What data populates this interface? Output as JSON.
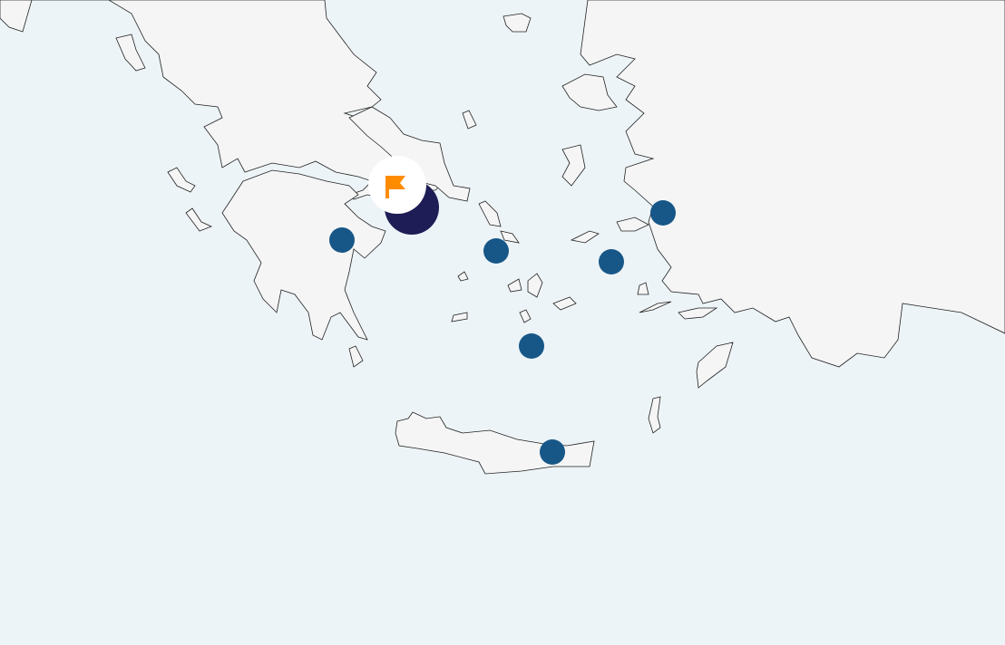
{
  "map": {
    "colors": {
      "sea": "#edf4f8",
      "land": "#f5f5f5",
      "border": "#222222",
      "marker": "#175788",
      "cluster": "#1f1d55",
      "flag": "#ff8c00"
    },
    "selected_marker": {
      "icon": "flag-icon",
      "background": "#ffffff"
    },
    "markers": [
      {
        "name": "marker-peloponnese"
      },
      {
        "name": "marker-cyclades-west"
      },
      {
        "name": "marker-cyclades-east"
      },
      {
        "name": "marker-dodecanese"
      },
      {
        "name": "marker-santorini"
      },
      {
        "name": "marker-crete"
      }
    ]
  }
}
